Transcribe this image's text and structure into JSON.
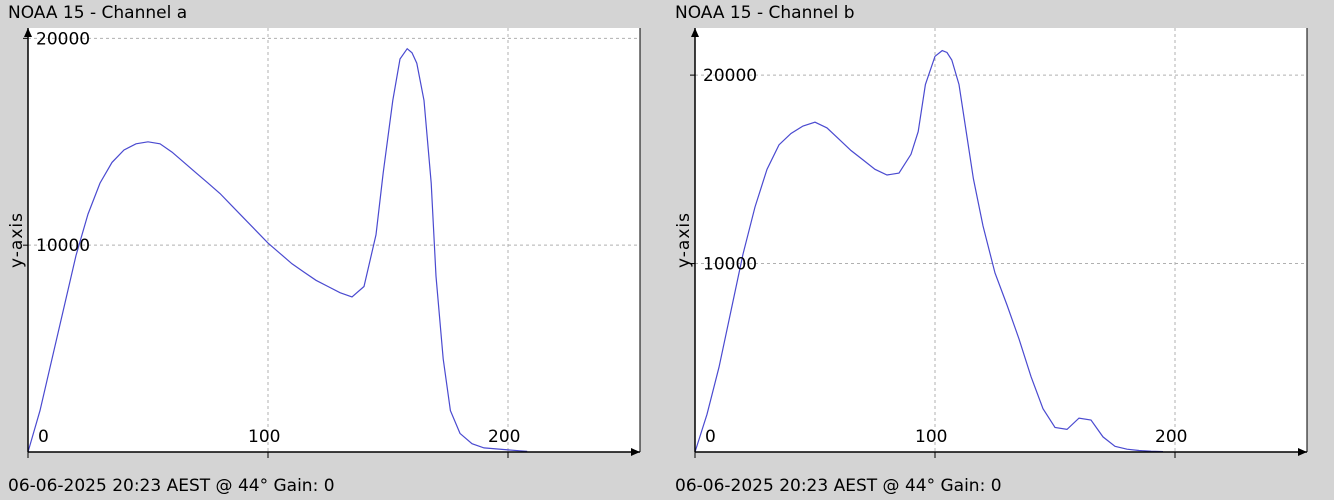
{
  "chart_data": [
    {
      "type": "line",
      "title": "NOAA 15 - Channel a",
      "ylabel": "y-axis",
      "footer": "06-06-2025 20:23 AEST @ 44° Gain: 0",
      "xlim": [
        0,
        255
      ],
      "ylim": [
        0,
        20500
      ],
      "x_ticks": [
        0,
        100,
        200
      ],
      "y_ticks": [
        10000,
        20000
      ],
      "grid": true,
      "line_color": "#4a4ad0",
      "series": [
        {
          "x": [
            0,
            5,
            10,
            15,
            20,
            25,
            30,
            35,
            40,
            45,
            50,
            55,
            60,
            65,
            70,
            75,
            80,
            85,
            90,
            95,
            100,
            105,
            110,
            115,
            120,
            125,
            130,
            135,
            140,
            145,
            148,
            152,
            155,
            158,
            160,
            162,
            165,
            168,
            170,
            173,
            176,
            180,
            185,
            190,
            195,
            200,
            205,
            208
          ],
          "y": [
            0,
            2000,
            4500,
            7000,
            9500,
            11500,
            13000,
            14000,
            14600,
            14900,
            15000,
            14900,
            14500,
            14000,
            13500,
            13000,
            12500,
            11900,
            11300,
            10700,
            10100,
            9600,
            9100,
            8700,
            8300,
            8000,
            7700,
            7500,
            8000,
            10500,
            13500,
            17000,
            19000,
            19500,
            19300,
            18800,
            17000,
            13000,
            8500,
            4500,
            2000,
            900,
            400,
            200,
            150,
            100,
            60,
            30
          ]
        }
      ]
    },
    {
      "type": "line",
      "title": "NOAA 15 - Channel b",
      "ylabel": "y-axis",
      "footer": "06-06-2025 20:23 AEST @ 44° Gain: 0",
      "xlim": [
        0,
        255
      ],
      "ylim": [
        0,
        22500
      ],
      "x_ticks": [
        0,
        100,
        200
      ],
      "y_ticks": [
        10000,
        20000
      ],
      "grid": true,
      "line_color": "#4a4ad0",
      "series": [
        {
          "x": [
            0,
            5,
            10,
            15,
            20,
            25,
            30,
            35,
            40,
            45,
            50,
            55,
            60,
            65,
            70,
            75,
            80,
            85,
            90,
            93,
            96,
            100,
            103,
            105,
            107,
            110,
            113,
            116,
            120,
            125,
            130,
            135,
            140,
            145,
            150,
            155,
            160,
            165,
            170,
            175,
            180,
            185,
            190,
            195
          ],
          "y": [
            0,
            2000,
            4500,
            7500,
            10500,
            13000,
            15000,
            16300,
            16900,
            17300,
            17500,
            17200,
            16600,
            16000,
            15500,
            15000,
            14700,
            14800,
            15800,
            17000,
            19500,
            21000,
            21300,
            21200,
            20800,
            19500,
            17000,
            14500,
            12000,
            9500,
            7800,
            6000,
            4000,
            2300,
            1300,
            1200,
            1800,
            1700,
            800,
            300,
            150,
            80,
            40,
            20
          ]
        }
      ]
    }
  ]
}
